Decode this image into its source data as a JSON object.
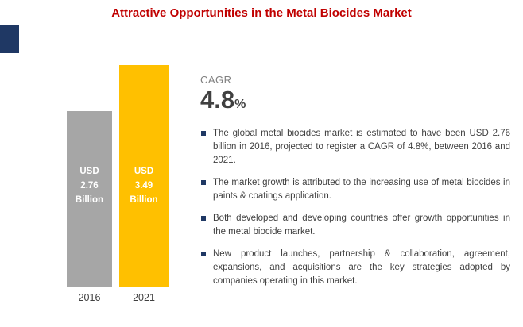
{
  "title": "Attractive Opportunities in the Metal Biocides Market",
  "colors": {
    "title_red": "#C00000",
    "accent_navy": "#1F3864",
    "bar_2016_gray": "#A6A6A6",
    "bar_2021_yellow": "#FFC000",
    "body_text": "#404040",
    "divider_gray": "#A6A6A6"
  },
  "cagr": {
    "label": "CAGR",
    "value": "4.8",
    "unit": "%"
  },
  "bullets": [
    "The global metal biocides market is estimated to have been USD 2.76 billion in 2016, projected to register a CAGR of 4.8%, between 2016 and 2021.",
    "The market growth is attributed to the increasing use of metal biocides in paints & coatings application.",
    "Both developed and developing countries offer growth opportunities in the metal biocide market.",
    "New product launches, partnership & collaboration, agreement, expansions, and acquisitions are the key strategies adopted by companies operating in this market."
  ],
  "chart_data": {
    "type": "bar",
    "title": "Attractive Opportunities in the Metal Biocides Market",
    "categories": [
      "2016",
      "2021"
    ],
    "values": [
      2.76,
      3.49
    ],
    "unit": "USD Billion",
    "bar_labels": [
      "USD\n2.76\nBillion",
      "USD\n3.49\nBillion"
    ],
    "bar_colors": [
      "#A6A6A6",
      "#FFC000"
    ],
    "cagr_pct": 4.8,
    "ylim": [
      0,
      3.5
    ],
    "grid": false,
    "legend": "none"
  }
}
